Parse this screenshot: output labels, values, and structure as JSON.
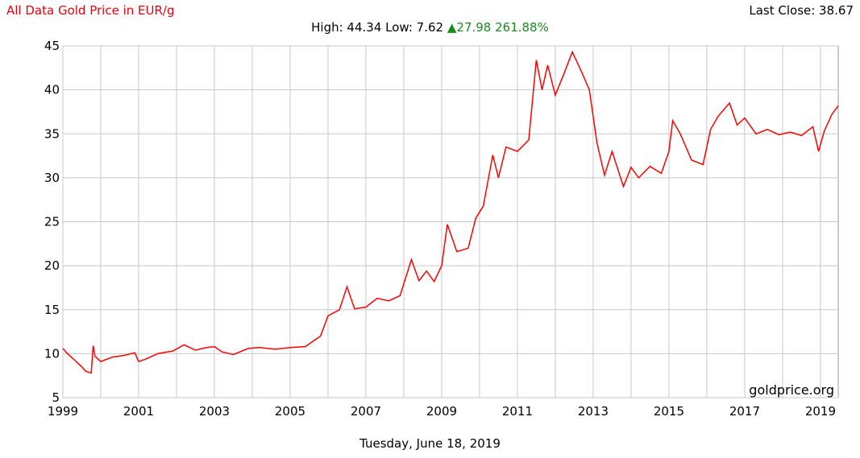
{
  "header": {
    "title": "All Data Gold Price in EUR/g",
    "last_close": "Last Close: 38.67",
    "stats_prefix": "High: 44.34 Low: 7.62",
    "change_arrow": "▲",
    "change_value": "27.98 261.88%",
    "change_color": "#1a8a1a"
  },
  "footer": {
    "date": "Tuesday, June 18, 2019"
  },
  "watermark": "goldprice.org",
  "chart_data": {
    "type": "line",
    "title": "All Data Gold Price in EUR/g",
    "xlabel": "",
    "ylabel": "",
    "xlim": [
      1999,
      2019.47
    ],
    "ylim": [
      5,
      45
    ],
    "grid": true,
    "line_color": "#ff0000",
    "x_ticks": [
      "1999",
      "2001",
      "2003",
      "2005",
      "2007",
      "2009",
      "2011",
      "2013",
      "2015",
      "2017",
      "2019"
    ],
    "y_ticks": [
      "5",
      "10",
      "15",
      "20",
      "25",
      "30",
      "35",
      "40",
      "45"
    ],
    "series": [
      {
        "x": [
          1999.0,
          1999.1,
          1999.3,
          1999.5,
          1999.6,
          1999.75,
          1999.8,
          1999.85,
          2000.0,
          2000.3,
          2000.6,
          2000.9,
          2001.0,
          2001.2,
          2001.5,
          2001.9,
          2002.2,
          2002.5,
          2002.8,
          2003.0,
          2003.2,
          2003.5,
          2003.9,
          2004.2,
          2004.6,
          2005.0,
          2005.4,
          2005.8,
          2006.0,
          2006.3,
          2006.5,
          2006.7,
          2007.0,
          2007.3,
          2007.6,
          2007.9,
          2008.2,
          2008.4,
          2008.6,
          2008.8,
          2009.0,
          2009.15,
          2009.4,
          2009.7,
          2009.9,
          2010.1,
          2010.35,
          2010.5,
          2010.7,
          2011.0,
          2011.3,
          2011.5,
          2011.65,
          2011.8,
          2012.0,
          2012.2,
          2012.45,
          2012.7,
          2012.9,
          2013.1,
          2013.3,
          2013.5,
          2013.8,
          2014.0,
          2014.2,
          2014.5,
          2014.8,
          2015.0,
          2015.1,
          2015.3,
          2015.6,
          2015.9,
          2016.1,
          2016.3,
          2016.6,
          2016.8,
          2017.0,
          2017.3,
          2017.6,
          2017.9,
          2018.2,
          2018.5,
          2018.8,
          2018.95,
          2019.1,
          2019.3,
          2019.47
        ],
        "values": [
          10.6,
          10.1,
          9.3,
          8.5,
          8.0,
          7.8,
          10.9,
          9.7,
          9.1,
          9.6,
          9.8,
          10.1,
          9.1,
          9.4,
          10.0,
          10.3,
          11.0,
          10.4,
          10.7,
          10.8,
          10.2,
          9.9,
          10.6,
          10.7,
          10.5,
          10.7,
          10.8,
          12.0,
          14.3,
          15.0,
          17.6,
          15.1,
          15.3,
          16.3,
          16.0,
          16.6,
          20.7,
          18.3,
          19.4,
          18.2,
          20.0,
          24.7,
          21.6,
          22.0,
          25.4,
          26.8,
          32.6,
          30.0,
          33.5,
          33.0,
          34.3,
          43.4,
          40.0,
          42.8,
          39.4,
          41.5,
          44.3,
          42.0,
          40.0,
          34.0,
          30.3,
          33.0,
          29.0,
          31.2,
          30.0,
          31.3,
          30.5,
          33.0,
          36.5,
          35.0,
          32.0,
          31.5,
          35.5,
          37.0,
          38.5,
          36.0,
          36.8,
          35.0,
          35.5,
          34.9,
          35.2,
          34.8,
          35.8,
          33.0,
          35.3,
          37.2,
          38.2
        ]
      }
    ]
  }
}
